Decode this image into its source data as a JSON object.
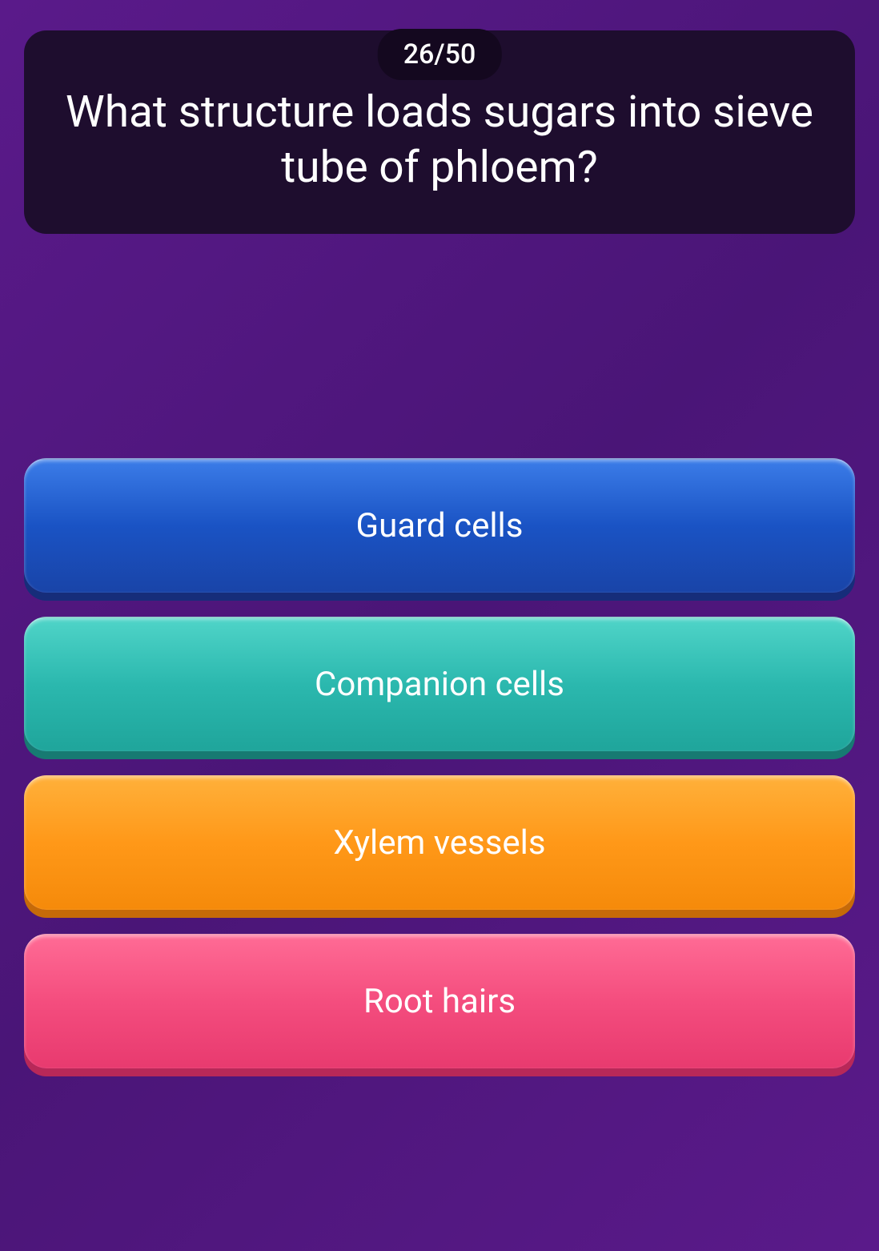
{
  "quiz": {
    "counter": "26/50",
    "question": "What structure loads sugars into sieve tube of phloem?",
    "answers": [
      {
        "label": "Guard cells",
        "color_top": "#3b7ce8",
        "color_bottom": "#1944a8",
        "shadow_color": "#162d7a"
      },
      {
        "label": "Companion cells",
        "color_top": "#4fd4c8",
        "color_bottom": "#1fa59b",
        "shadow_color": "#177a72"
      },
      {
        "label": "Xylem vessels",
        "color_top": "#ffb03a",
        "color_bottom": "#f58a0a",
        "shadow_color": "#c66a08"
      },
      {
        "label": "Root hairs",
        "color_top": "#ff6b95",
        "color_bottom": "#e83a6f",
        "shadow_color": "#b82858"
      }
    ]
  },
  "styling": {
    "background_gradient_start": "#5a1a8a",
    "background_gradient_end": "#4a1577",
    "question_card_bg": "#1e0d2e",
    "counter_badge_bg": "#14081f",
    "text_color": "#ffffff",
    "question_fontsize": 55,
    "answer_fontsize": 42,
    "counter_fontsize": 34,
    "card_border_radius": 28,
    "button_height": 168,
    "button_gap": 30
  }
}
